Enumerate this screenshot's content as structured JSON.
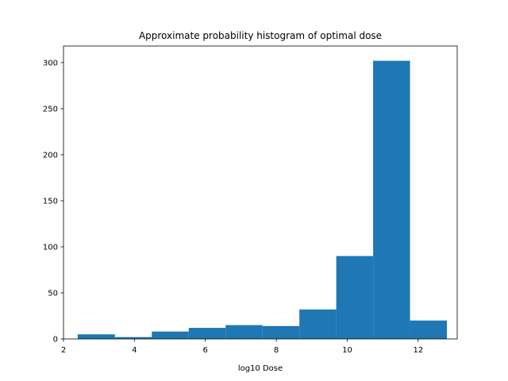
{
  "chart_data": {
    "type": "bar",
    "title": "Approximate probability histogram of optimal dose",
    "xlabel": "log10 Dose",
    "ylabel": "",
    "xlim": [
      2.0,
      13.1
    ],
    "ylim": [
      0,
      318
    ],
    "xticks": [
      2,
      4,
      6,
      8,
      10,
      12
    ],
    "yticks": [
      0,
      50,
      100,
      150,
      200,
      250,
      300
    ],
    "grid": false,
    "bar_color": "#1f77b4",
    "bins": [
      {
        "x0": 2.4,
        "x1": 3.45,
        "value": 5
      },
      {
        "x0": 3.45,
        "x1": 4.49,
        "value": 2
      },
      {
        "x0": 4.49,
        "x1": 5.53,
        "value": 8
      },
      {
        "x0": 5.53,
        "x1": 6.57,
        "value": 12
      },
      {
        "x0": 6.57,
        "x1": 7.61,
        "value": 15
      },
      {
        "x0": 7.61,
        "x1": 8.65,
        "value": 14
      },
      {
        "x0": 8.65,
        "x1": 9.69,
        "value": 32
      },
      {
        "x0": 9.69,
        "x1": 10.73,
        "value": 90
      },
      {
        "x0": 10.73,
        "x1": 11.77,
        "value": 302
      },
      {
        "x0": 11.77,
        "x1": 12.81,
        "value": 20
      }
    ]
  }
}
